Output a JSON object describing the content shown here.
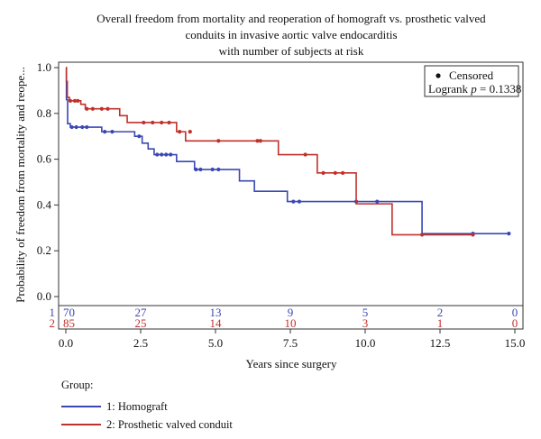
{
  "chart_data": {
    "type": "line",
    "title_lines": [
      "Overall freedom from mortality and reoperation of homograft vs. prosthetic valved",
      "conduits in invasive aortic valve endocarditis",
      "with number of subjects at risk"
    ],
    "xlabel": "Years since surgery",
    "ylabel": "Probability of freedom from mortality and reope...",
    "xlim": [
      0,
      15
    ],
    "ylim": [
      0,
      1
    ],
    "x_ticks": [
      "0.0",
      "2.5",
      "5.0",
      "7.5",
      "10.0",
      "12.5",
      "15.0"
    ],
    "x_tick_values": [
      0,
      2.5,
      5,
      7.5,
      10,
      12.5,
      15
    ],
    "y_ticks": [
      "0.0",
      "0.2",
      "0.4",
      "0.6",
      "0.8",
      "1.0"
    ],
    "y_tick_values": [
      0,
      0.2,
      0.4,
      0.6,
      0.8,
      1.0
    ],
    "censored_label": "Censored",
    "logrank_prefix": "Logrank ",
    "logrank_p": "p",
    "logrank_value": " = 0.1338",
    "group_title": "Group:",
    "series": [
      {
        "id": "1",
        "name": "1: Homograft",
        "color": "#3a48b4",
        "steps": [
          [
            0,
            1.0
          ],
          [
            0.02,
            0.86
          ],
          [
            0.06,
            0.755
          ],
          [
            0.15,
            0.74
          ],
          [
            1.2,
            0.72
          ],
          [
            2.3,
            0.7
          ],
          [
            2.55,
            0.67
          ],
          [
            2.75,
            0.645
          ],
          [
            2.95,
            0.62
          ],
          [
            3.7,
            0.59
          ],
          [
            4.3,
            0.555
          ],
          [
            5.8,
            0.505
          ],
          [
            6.3,
            0.46
          ],
          [
            7.4,
            0.415
          ],
          [
            11.9,
            0.275
          ],
          [
            14.8,
            0.275
          ]
        ],
        "censored": [
          [
            0.2,
            0.74
          ],
          [
            0.35,
            0.74
          ],
          [
            0.55,
            0.74
          ],
          [
            0.7,
            0.74
          ],
          [
            1.3,
            0.72
          ],
          [
            1.55,
            0.72
          ],
          [
            2.45,
            0.7
          ],
          [
            3.05,
            0.62
          ],
          [
            3.2,
            0.62
          ],
          [
            3.35,
            0.62
          ],
          [
            3.5,
            0.62
          ],
          [
            4.35,
            0.555
          ],
          [
            4.5,
            0.555
          ],
          [
            4.9,
            0.555
          ],
          [
            5.1,
            0.555
          ],
          [
            7.6,
            0.415
          ],
          [
            7.8,
            0.415
          ],
          [
            9.7,
            0.415
          ],
          [
            10.4,
            0.415
          ],
          [
            13.6,
            0.275
          ],
          [
            14.8,
            0.275
          ]
        ],
        "at_risk": [
          "70",
          "27",
          "13",
          "9",
          "5",
          "2",
          "0"
        ]
      },
      {
        "id": "2",
        "name": "2: Prosthetic valved conduit",
        "color": "#c0312b",
        "steps": [
          [
            0,
            1.0
          ],
          [
            0.02,
            0.94
          ],
          [
            0.05,
            0.87
          ],
          [
            0.12,
            0.855
          ],
          [
            0.5,
            0.84
          ],
          [
            0.65,
            0.82
          ],
          [
            1.8,
            0.79
          ],
          [
            2.05,
            0.76
          ],
          [
            3.7,
            0.72
          ],
          [
            4.0,
            0.68
          ],
          [
            7.1,
            0.62
          ],
          [
            8.4,
            0.54
          ],
          [
            9.7,
            0.405
          ],
          [
            10.9,
            0.27
          ],
          [
            13.6,
            0.27
          ]
        ],
        "censored": [
          [
            0.15,
            0.855
          ],
          [
            0.3,
            0.855
          ],
          [
            0.4,
            0.855
          ],
          [
            0.7,
            0.82
          ],
          [
            0.9,
            0.82
          ],
          [
            1.2,
            0.82
          ],
          [
            1.4,
            0.82
          ],
          [
            2.6,
            0.76
          ],
          [
            2.9,
            0.76
          ],
          [
            3.2,
            0.76
          ],
          [
            3.45,
            0.76
          ],
          [
            3.8,
            0.72
          ],
          [
            4.15,
            0.72
          ],
          [
            5.1,
            0.68
          ],
          [
            6.4,
            0.68
          ],
          [
            6.5,
            0.68
          ],
          [
            8.0,
            0.62
          ],
          [
            8.6,
            0.54
          ],
          [
            9.0,
            0.54
          ],
          [
            9.25,
            0.54
          ],
          [
            11.9,
            0.27
          ],
          [
            13.6,
            0.27
          ]
        ],
        "at_risk": [
          "85",
          "25",
          "14",
          "10",
          "3",
          "1",
          "0"
        ]
      }
    ],
    "at_risk_x": [
      0,
      2.5,
      5,
      7.5,
      10,
      12.5,
      15
    ]
  }
}
